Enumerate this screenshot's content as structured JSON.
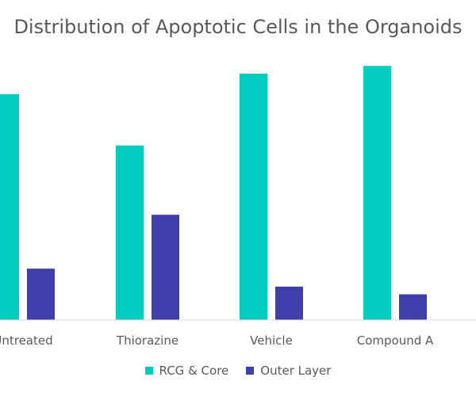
{
  "chart_data": {
    "type": "bar",
    "title": "Distribution of Apoptotic Cells in the Organoids",
    "categories": [
      "Untreated",
      "Thiorazine",
      "Vehicle",
      "Compound A"
    ],
    "series": [
      {
        "name": "RCG & Core",
        "color": "#00CDBE",
        "values": [
          88,
          68,
          96,
          99
        ]
      },
      {
        "name": "Outer Layer",
        "color": "#3F3FAB",
        "values": [
          20,
          41,
          13,
          10
        ]
      }
    ],
    "xlabel": "",
    "ylabel": "",
    "ylim": [
      0,
      100
    ],
    "grid": false,
    "legend_position": "bottom"
  }
}
